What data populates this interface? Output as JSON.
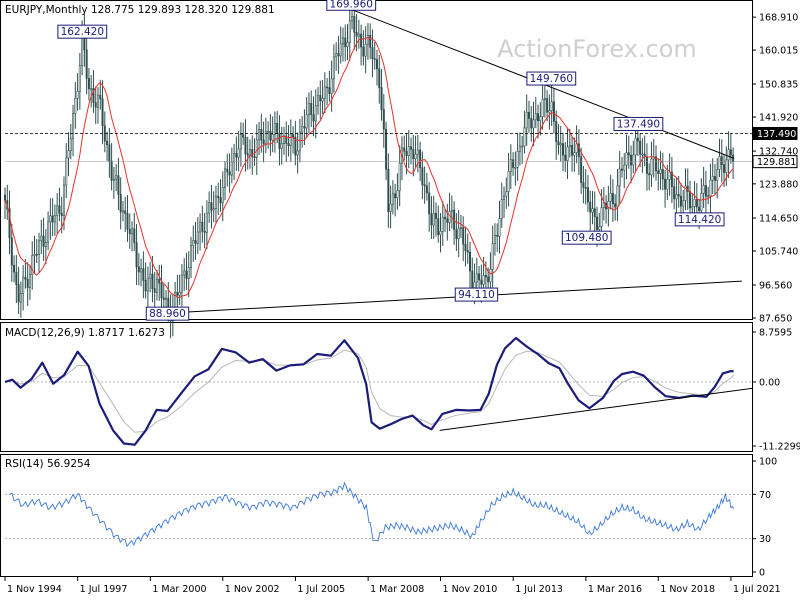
{
  "chart_data": [
    {
      "type": "candlestick",
      "panel": "price",
      "header": "EURJPY,Monthly  128.775 129.893 128.320 129.881",
      "watermark": "ActionForex.com",
      "y_ticks": [
        "168.910",
        "160.015",
        "150.835",
        "141.920",
        "132.740",
        "123.880",
        "114.650",
        "105.740",
        "96.560",
        "87.650"
      ],
      "ylim": [
        87.65,
        173.0
      ],
      "price_tags": [
        {
          "label": "137.490",
          "value": 137.49,
          "style": "dark"
        },
        {
          "label": "129.881",
          "value": 129.881,
          "style": "light"
        }
      ],
      "labels": [
        {
          "text": "162.420",
          "t": 1997.67,
          "value": 162.42
        },
        {
          "text": "169.960",
          "t": 2007.55,
          "value": 169.96
        },
        {
          "text": "88.960",
          "t": 2000.8,
          "value": 88.96
        },
        {
          "text": "94.110",
          "t": 2012.15,
          "value": 94.11
        },
        {
          "text": "149.760",
          "t": 2014.9,
          "value": 149.76
        },
        {
          "text": "109.480",
          "t": 2016.2,
          "value": 109.48
        },
        {
          "text": "137.490",
          "t": 2018.1,
          "value": 137.49
        },
        {
          "text": "114.420",
          "t": 2020.35,
          "value": 114.42
        }
      ],
      "resistance_level": 137.49,
      "trendlines": [
        {
          "t1": 2007.55,
          "v1": 171.0,
          "t2": 2021.6,
          "v2": 130.8
        },
        {
          "t1": 2000.8,
          "v1": 88.96,
          "t2": 2021.9,
          "v2": 97.6
        }
      ],
      "ma_period": 12,
      "anchors": [
        [
          1994.83,
          118
        ],
        [
          1995.0,
          110
        ],
        [
          1995.3,
          92
        ],
        [
          1995.6,
          98
        ],
        [
          1995.9,
          104
        ],
        [
          1996.4,
          112
        ],
        [
          1996.9,
          118
        ],
        [
          1997.3,
          140
        ],
        [
          1997.67,
          162.4
        ],
        [
          1997.9,
          150
        ],
        [
          1998.3,
          145
        ],
        [
          1998.8,
          125
        ],
        [
          1999.3,
          114
        ],
        [
          1999.7,
          103
        ],
        [
          2000.0,
          96
        ],
        [
          2000.4,
          98
        ],
        [
          2000.8,
          89
        ],
        [
          2001.2,
          94
        ],
        [
          2001.6,
          104
        ],
        [
          2002.0,
          112
        ],
        [
          2002.5,
          118
        ],
        [
          2003.0,
          126
        ],
        [
          2003.4,
          135
        ],
        [
          2003.9,
          132
        ],
        [
          2004.4,
          138
        ],
        [
          2005.0,
          136
        ],
        [
          2005.5,
          134
        ],
        [
          2006.0,
          143
        ],
        [
          2006.6,
          148
        ],
        [
          2007.0,
          158
        ],
        [
          2007.55,
          167
        ],
        [
          2007.9,
          162
        ],
        [
          2008.3,
          160
        ],
        [
          2008.6,
          152
        ],
        [
          2008.9,
          118
        ],
        [
          2009.2,
          122
        ],
        [
          2009.5,
          134
        ],
        [
          2009.8,
          133
        ],
        [
          2010.2,
          126
        ],
        [
          2010.5,
          113
        ],
        [
          2010.8,
          113
        ],
        [
          2011.2,
          115
        ],
        [
          2011.6,
          110
        ],
        [
          2011.9,
          101
        ],
        [
          2012.15,
          97
        ],
        [
          2012.5,
          98
        ],
        [
          2012.9,
          110
        ],
        [
          2013.2,
          124
        ],
        [
          2013.6,
          130
        ],
        [
          2013.9,
          139
        ],
        [
          2014.3,
          142
        ],
        [
          2014.6,
          144
        ],
        [
          2014.9,
          146
        ],
        [
          2015.2,
          131
        ],
        [
          2015.5,
          134
        ],
        [
          2015.9,
          131
        ],
        [
          2016.2,
          120
        ],
        [
          2016.5,
          113
        ],
        [
          2016.8,
          117
        ],
        [
          2017.2,
          120
        ],
        [
          2017.6,
          130
        ],
        [
          2017.9,
          133
        ],
        [
          2018.1,
          134
        ],
        [
          2018.4,
          129
        ],
        [
          2018.8,
          128
        ],
        [
          2019.2,
          124
        ],
        [
          2019.6,
          120
        ],
        [
          2019.9,
          120
        ],
        [
          2020.35,
          118
        ],
        [
          2020.7,
          124
        ],
        [
          2021.0,
          127
        ],
        [
          2021.3,
          131
        ],
        [
          2021.5,
          132
        ],
        [
          2021.6,
          129.9
        ]
      ]
    },
    {
      "type": "line",
      "panel": "macd",
      "header": "MACD(12,26,9) 1.8717 1.6273",
      "y_ticks": [
        "8.7595",
        "0.00",
        "-11.2299"
      ],
      "ylim": [
        -11.23,
        8.76
      ],
      "zero_line": 0,
      "series": [
        {
          "role": "macd",
          "points": [
            [
              1994.83,
              0
            ],
            [
              1995.1,
              0.4
            ],
            [
              1995.4,
              -1
            ],
            [
              1995.8,
              0.5
            ],
            [
              1996.2,
              3.4
            ],
            [
              1996.6,
              -0.3
            ],
            [
              1997.0,
              1.2
            ],
            [
              1997.5,
              5.3
            ],
            [
              1997.9,
              2.8
            ],
            [
              1998.3,
              -3.8
            ],
            [
              1998.8,
              -8.5
            ],
            [
              1999.2,
              -10.8
            ],
            [
              1999.6,
              -11.0
            ],
            [
              2000.0,
              -8.5
            ],
            [
              2000.4,
              -4.9
            ],
            [
              2000.8,
              -5.1
            ],
            [
              2001.3,
              -2.0
            ],
            [
              2001.8,
              1.0
            ],
            [
              2002.3,
              2.2
            ],
            [
              2002.8,
              5.8
            ],
            [
              2003.3,
              5.2
            ],
            [
              2003.8,
              3.4
            ],
            [
              2004.3,
              4.0
            ],
            [
              2004.8,
              2.0
            ],
            [
              2005.3,
              2.9
            ],
            [
              2005.8,
              3.1
            ],
            [
              2006.3,
              4.9
            ],
            [
              2006.8,
              4.6
            ],
            [
              2007.3,
              7.3
            ],
            [
              2007.8,
              4.2
            ],
            [
              2008.1,
              -0.4
            ],
            [
              2008.3,
              -7.1
            ],
            [
              2008.6,
              -8.2
            ],
            [
              2009.0,
              -7.4
            ],
            [
              2009.4,
              -6.5
            ],
            [
              2009.8,
              -5.9
            ],
            [
              2010.2,
              -7.6
            ],
            [
              2010.5,
              -8.3
            ],
            [
              2010.9,
              -5.6
            ],
            [
              2011.4,
              -4.9
            ],
            [
              2011.9,
              -5.0
            ],
            [
              2012.3,
              -4.9
            ],
            [
              2012.6,
              -2.1
            ],
            [
              2012.9,
              3.0
            ],
            [
              2013.2,
              5.9
            ],
            [
              2013.6,
              7.7
            ],
            [
              2014.0,
              6.2
            ],
            [
              2014.4,
              4.9
            ],
            [
              2014.8,
              3.3
            ],
            [
              2015.2,
              2.4
            ],
            [
              2015.5,
              -0.2
            ],
            [
              2015.9,
              -3.2
            ],
            [
              2016.3,
              -4.6
            ],
            [
              2016.8,
              -2.8
            ],
            [
              2017.2,
              0.2
            ],
            [
              2017.5,
              1.4
            ],
            [
              2017.9,
              1.8
            ],
            [
              2018.3,
              1.1
            ],
            [
              2018.7,
              -0.9
            ],
            [
              2019.1,
              -2.5
            ],
            [
              2019.6,
              -2.8
            ],
            [
              2020.1,
              -2.4
            ],
            [
              2020.6,
              -2.6
            ],
            [
              2020.9,
              -0.9
            ],
            [
              2021.2,
              1.5
            ],
            [
              2021.5,
              1.9
            ],
            [
              2021.6,
              1.87
            ]
          ]
        },
        {
          "role": "signal",
          "points": "lagging smoothed copy of macd"
        }
      ],
      "trendline": {
        "t1": 2010.8,
        "v1": -8.5,
        "t2": 2022.3,
        "v2": -1.1
      }
    },
    {
      "type": "line",
      "panel": "rsi",
      "header": "RSI(14) 56.9254",
      "y_ticks": [
        "100",
        "70",
        "30",
        "0"
      ],
      "ylim": [
        0,
        100
      ],
      "levels": [
        70,
        30
      ],
      "series": [
        {
          "role": "rsi",
          "points": [
            [
              1995.0,
              70
            ],
            [
              1995.5,
              60
            ],
            [
              1996.0,
              64
            ],
            [
              1996.5,
              58
            ],
            [
              1997.0,
              62
            ],
            [
              1997.5,
              70
            ],
            [
              1997.9,
              58
            ],
            [
              1998.4,
              45
            ],
            [
              1998.9,
              32
            ],
            [
              1999.4,
              25
            ],
            [
              1999.9,
              32
            ],
            [
              2000.4,
              40
            ],
            [
              2000.9,
              48
            ],
            [
              2001.4,
              55
            ],
            [
              2001.9,
              60
            ],
            [
              2002.4,
              63
            ],
            [
              2002.9,
              68
            ],
            [
              2003.4,
              62
            ],
            [
              2003.9,
              58
            ],
            [
              2004.4,
              63
            ],
            [
              2004.9,
              61
            ],
            [
              2005.4,
              58
            ],
            [
              2005.9,
              65
            ],
            [
              2006.4,
              70
            ],
            [
              2006.9,
              72
            ],
            [
              2007.3,
              78
            ],
            [
              2007.7,
              68
            ],
            [
              2008.1,
              58
            ],
            [
              2008.4,
              26
            ],
            [
              2008.8,
              40
            ],
            [
              2009.2,
              42
            ],
            [
              2009.6,
              40
            ],
            [
              2010.0,
              36
            ],
            [
              2010.4,
              38
            ],
            [
              2010.8,
              40
            ],
            [
              2011.2,
              42
            ],
            [
              2011.6,
              38
            ],
            [
              2012.0,
              32
            ],
            [
              2012.3,
              45
            ],
            [
              2012.7,
              60
            ],
            [
              2013.1,
              68
            ],
            [
              2013.5,
              72
            ],
            [
              2013.9,
              66
            ],
            [
              2014.3,
              60
            ],
            [
              2014.7,
              60
            ],
            [
              2015.1,
              55
            ],
            [
              2015.5,
              50
            ],
            [
              2015.9,
              45
            ],
            [
              2016.3,
              34
            ],
            [
              2016.7,
              42
            ],
            [
              2017.1,
              52
            ],
            [
              2017.5,
              58
            ],
            [
              2017.9,
              56
            ],
            [
              2018.3,
              48
            ],
            [
              2018.7,
              45
            ],
            [
              2019.1,
              42
            ],
            [
              2019.5,
              38
            ],
            [
              2019.9,
              44
            ],
            [
              2020.3,
              38
            ],
            [
              2020.7,
              50
            ],
            [
              2021.0,
              58
            ],
            [
              2021.3,
              68
            ],
            [
              2021.6,
              57
            ]
          ]
        }
      ]
    }
  ],
  "x_axis": {
    "ticks": [
      {
        "label": "1 Nov 1994",
        "t": 1994.83
      },
      {
        "label": "1 Jul 1997",
        "t": 1997.5
      },
      {
        "label": "1 Mar 2000",
        "t": 2000.17
      },
      {
        "label": "1 Nov 2002",
        "t": 2002.83
      },
      {
        "label": "1 Jul 2005",
        "t": 2005.5
      },
      {
        "label": "1 Mar 2008",
        "t": 2008.17
      },
      {
        "label": "1 Nov 2010",
        "t": 2010.83
      },
      {
        "label": "1 Jul 2013",
        "t": 2013.5
      },
      {
        "label": "1 Mar 2016",
        "t": 2016.17
      },
      {
        "label": "1 Nov 2018",
        "t": 2018.83
      },
      {
        "label": "1 Jul 2021",
        "t": 2021.5
      }
    ]
  },
  "colors": {
    "candles": "#2f4f4f",
    "ma": "#e8322b",
    "macd": "#1b1b7a",
    "signal": "#b8b8b8",
    "rsi": "#3b78d8",
    "trendline": "#000000",
    "label_border": "#1b1b7a",
    "watermark": "#cfcfcf"
  }
}
